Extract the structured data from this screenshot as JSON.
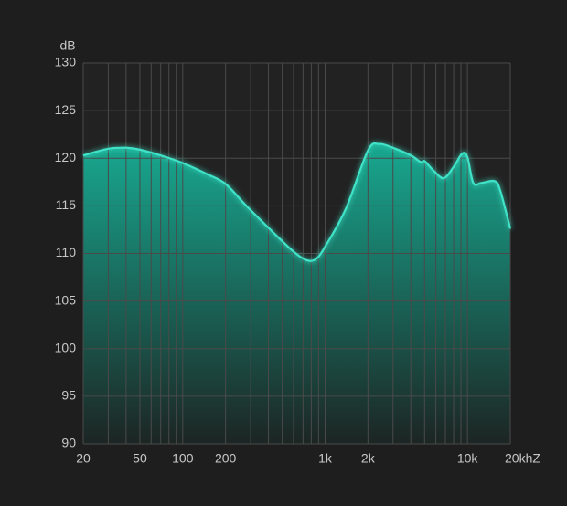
{
  "chart_data": {
    "type": "area",
    "y_label": "dB",
    "x_scale": "log",
    "grid": true,
    "color": "#3fe3c8",
    "x": [
      20,
      30,
      40,
      50,
      70,
      100,
      150,
      200,
      280,
      440,
      600,
      740,
      860,
      1000,
      1400,
      2000,
      2400,
      3000,
      4000,
      4700,
      5000,
      5700,
      6800,
      8000,
      9200,
      10000,
      11000,
      12500,
      15500,
      17000,
      20000
    ],
    "values": [
      120.3,
      121.0,
      121.1,
      120.9,
      120.3,
      119.5,
      118.3,
      117.3,
      115.0,
      112.1,
      110.2,
      109.3,
      109.4,
      110.7,
      114.7,
      120.8,
      121.5,
      121.1,
      120.3,
      119.6,
      119.7,
      118.8,
      117.9,
      119.1,
      120.5,
      120.1,
      117.4,
      117.4,
      117.6,
      116.6,
      112.6
    ],
    "xlim": [
      20,
      20000
    ],
    "ylim": [
      90,
      130
    ],
    "xticks": [
      20,
      50,
      100,
      200,
      {
        "value": 1000,
        "label": "1k"
      },
      {
        "value": 2000,
        "label": "2k"
      },
      {
        "value": 10000,
        "label": "10k"
      },
      {
        "value": 20000,
        "label": "20khZ"
      }
    ],
    "xminor": [
      30,
      40,
      60,
      70,
      80,
      90,
      300,
      400,
      500,
      600,
      700,
      800,
      900,
      3000,
      4000,
      5000,
      6000,
      7000,
      8000,
      9000
    ],
    "yticks": [
      90,
      95,
      100,
      105,
      110,
      115,
      120,
      125,
      130
    ]
  }
}
